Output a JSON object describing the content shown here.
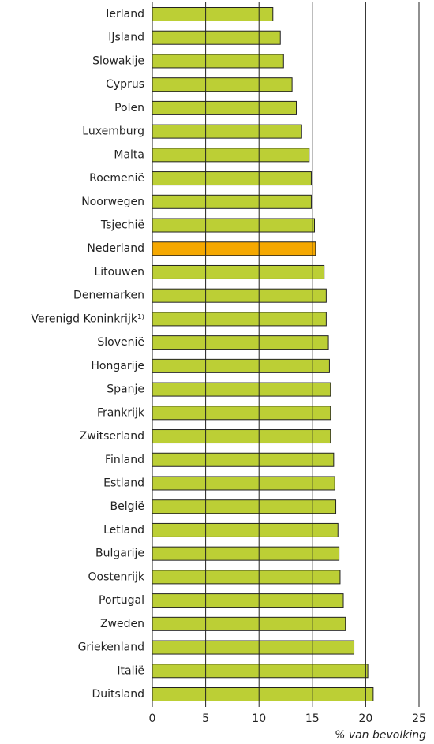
{
  "chart_data": {
    "type": "bar",
    "orientation": "horizontal",
    "categories": [
      "Ierland",
      "IJsland",
      "Slowakije",
      "Cyprus",
      "Polen",
      "Luxemburg",
      "Malta",
      "Roemenië",
      "Noorwegen",
      "Tsjechië",
      "Nederland",
      "Litouwen",
      "Denemarken",
      "Verenigd Koninkrijk¹⁾",
      "Slovenië",
      "Hongarije",
      "Spanje",
      "Frankrijk",
      "Zwitserland",
      "Finland",
      "Estland",
      "België",
      "Letland",
      "Bulgarije",
      "Oostenrijk",
      "Portugal",
      "Zweden",
      "Griekenland",
      "Italië",
      "Duitsland"
    ],
    "values": [
      11.3,
      12.0,
      12.3,
      13.1,
      13.5,
      14.0,
      14.7,
      14.9,
      14.9,
      15.2,
      15.3,
      16.1,
      16.3,
      16.3,
      16.5,
      16.6,
      16.7,
      16.7,
      16.7,
      17.0,
      17.1,
      17.2,
      17.4,
      17.5,
      17.6,
      17.9,
      18.1,
      18.9,
      20.2,
      20.7
    ],
    "colors": [
      "#bccf35",
      "#bccf35",
      "#bccf35",
      "#bccf35",
      "#bccf35",
      "#bccf35",
      "#bccf35",
      "#bccf35",
      "#bccf35",
      "#bccf35",
      "#f5a800",
      "#bccf35",
      "#bccf35",
      "#bccf35",
      "#bccf35",
      "#bccf35",
      "#bccf35",
      "#bccf35",
      "#bccf35",
      "#bccf35",
      "#bccf35",
      "#bccf35",
      "#bccf35",
      "#bccf35",
      "#bccf35",
      "#bccf35",
      "#bccf35",
      "#bccf35",
      "#bccf35",
      "#bccf35"
    ],
    "xlabel": "% van bevolking",
    "xlim": [
      0,
      25
    ],
    "xticks": [
      0,
      5,
      10,
      15,
      20,
      25
    ],
    "grid": true
  }
}
